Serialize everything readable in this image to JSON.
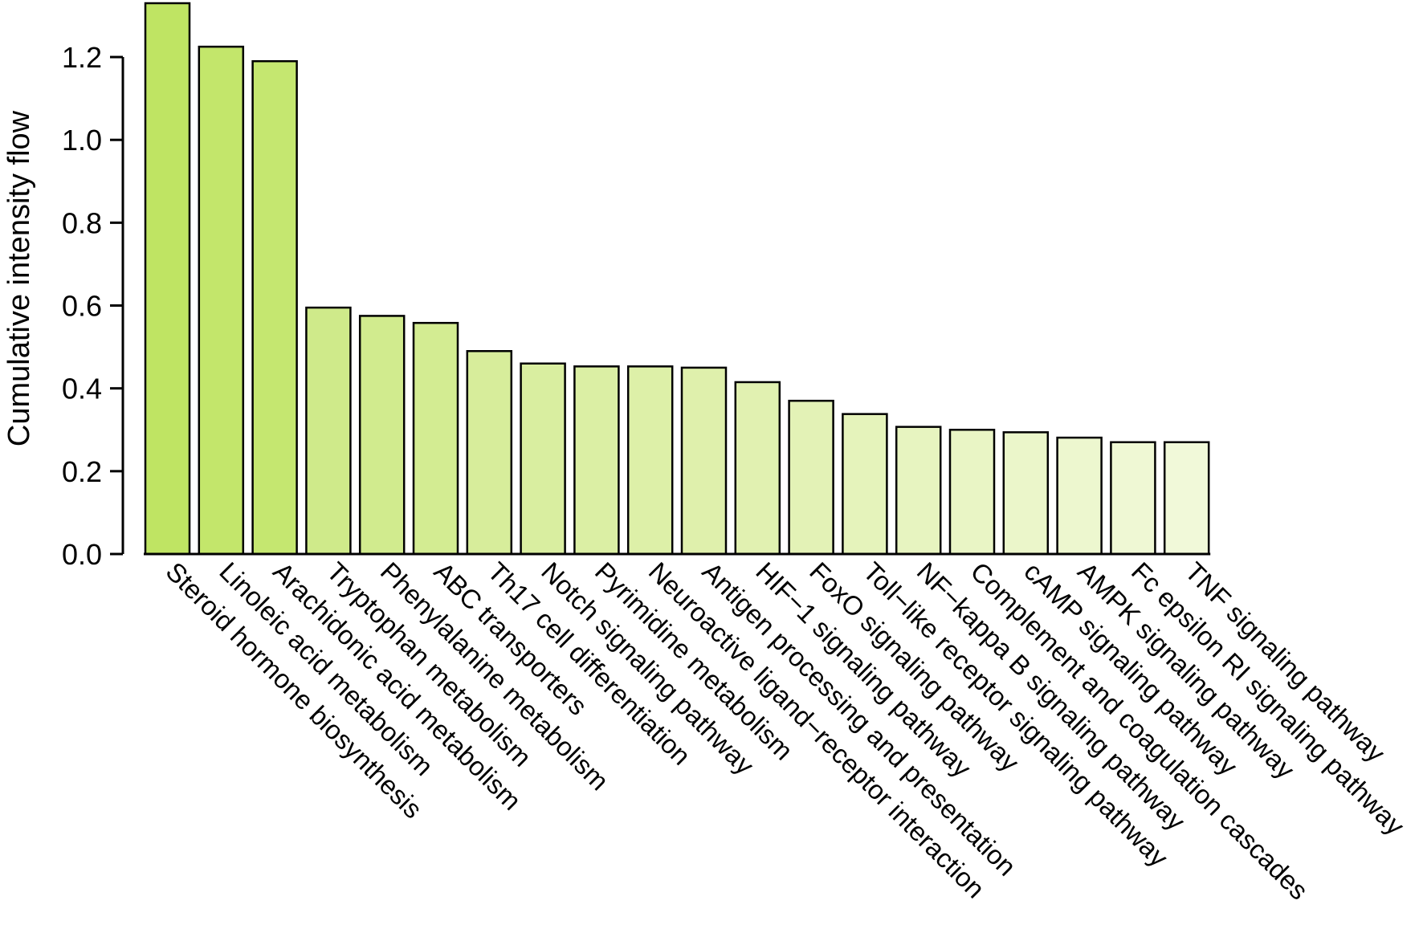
{
  "chart_data": {
    "type": "bar",
    "title": "",
    "xlabel": "",
    "ylabel": "Cumulative intensity flow",
    "ylim": [
      0,
      1.33
    ],
    "yticks": [
      "0.0",
      "0.2",
      "0.4",
      "0.6",
      "0.8",
      "1.0",
      "1.2"
    ],
    "grid": false,
    "legend": "none",
    "categories": [
      "Steroid hormone biosynthesis",
      "Linoleic acid metabolism",
      "Arachidonic acid metabolism",
      "Tryptophan metabolism",
      "Phenylalanine metabolism",
      "ABC transporters",
      "Th17 cell differentiation",
      "Notch signaling pathway",
      "Pyrimidine metabolism",
      "Neuroactive ligand−receptor interaction",
      "Antigen processing and presentation",
      "HIF−1 signaling pathway",
      "FoxO signaling pathway",
      "Toll−like receptor signaling pathway",
      "NF−kappa B signaling pathway",
      "Complement and coagulation cascades",
      "cAMP signaling pathway",
      "AMPK signaling pathway",
      "Fc epsilon RI signaling pathway",
      "TNF signaling pathway"
    ],
    "values": [
      1.33,
      1.225,
      1.19,
      0.595,
      0.575,
      0.558,
      0.49,
      0.46,
      0.453,
      0.453,
      0.45,
      0.415,
      0.37,
      0.338,
      0.307,
      0.3,
      0.294,
      0.281,
      0.27,
      0.27
    ],
    "colors": [
      "#bfe463",
      "#c3e66b",
      "#c5e770",
      "#cfea8a",
      "#d1eb8e",
      "#d3ec92",
      "#d7ed9b",
      "#d9eea0",
      "#dbefa4",
      "#ddf0a8",
      "#dff0ac",
      "#e1f1b1",
      "#e3f2b6",
      "#e5f3bb",
      "#e7f4c0",
      "#e9f5c5",
      "#ebf6ca",
      "#edf7cf",
      "#eff8d4",
      "#f1f9d9"
    ]
  }
}
